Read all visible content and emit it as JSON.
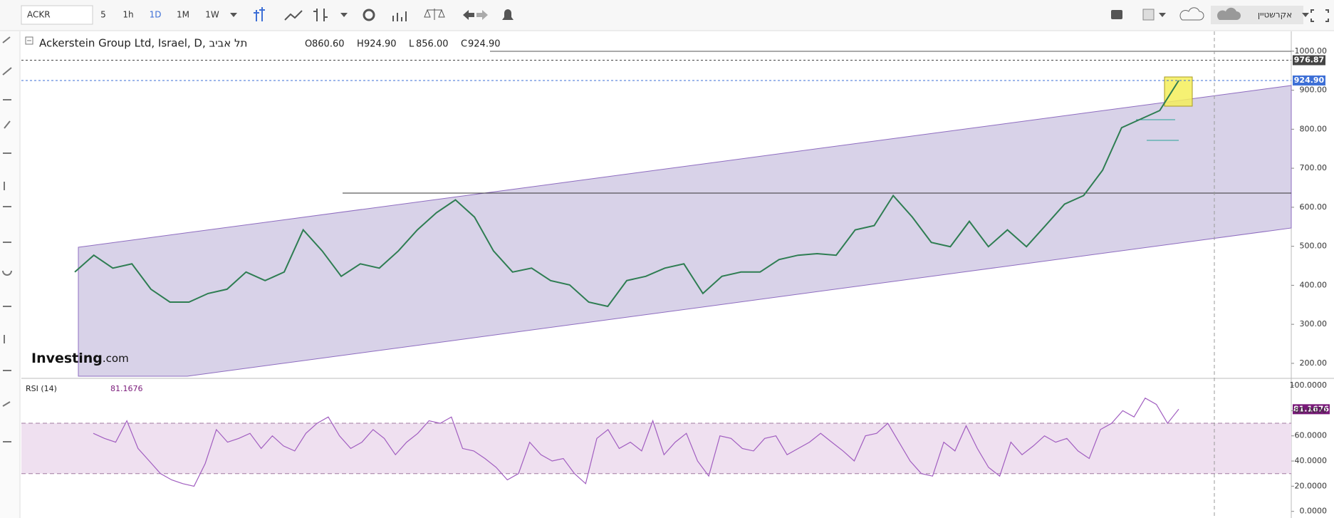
{
  "toolbar": {
    "symbol": "ACKR",
    "intervals": [
      "5",
      "1h",
      "1D",
      "1M",
      "1W"
    ],
    "account": "אקרשטיין"
  },
  "chart_data": [
    {
      "type": "line",
      "title": "Ackerstein Group Ltd, Israel, D, תל אביב",
      "ohlc": [
        {
          "key": "O",
          "value": 860.6,
          "label": "860.60"
        },
        {
          "key": "H",
          "value": 924.9,
          "label": "924.90"
        },
        {
          "key": "L",
          "value": 856,
          "label": "856.00"
        },
        {
          "key": "C",
          "value": 924.9,
          "label": "924.90"
        }
      ],
      "series": [
        {
          "color": "#2e7d52",
          "values": [
            434,
            477,
            444,
            455,
            390,
            357,
            357,
            379,
            390,
            434,
            412,
            434,
            542,
            488,
            423,
            455,
            444,
            488,
            542,
            586,
            619,
            575,
            488,
            434,
            444,
            412,
            401,
            357,
            346,
            412,
            423,
            444,
            455,
            379,
            423,
            434,
            434,
            466,
            477,
            481,
            477,
            542,
            553,
            630,
            575,
            510,
            499,
            564,
            499,
            542,
            499,
            553,
            608,
            630,
            695,
            804,
            826,
            848,
            924.9
          ]
        }
      ],
      "ylim": [
        167,
        1049
      ],
      "yticks": [
        {
          "value": 200,
          "label": "200.00"
        },
        {
          "value": 300,
          "label": "300.00"
        },
        {
          "value": 400,
          "label": "400.00"
        },
        {
          "value": 500,
          "label": "500.00"
        },
        {
          "value": 600,
          "label": "600.00"
        },
        {
          "value": 700,
          "label": "700.00"
        },
        {
          "value": 800,
          "label": "800.00"
        },
        {
          "value": 900,
          "label": "900.00"
        },
        {
          "value": 1000,
          "label": "1000.00"
        }
      ],
      "price_lines": [
        {
          "value": 976.87,
          "label": "976.87",
          "color": "#444444"
        },
        {
          "value": 924.9,
          "label": "924.90",
          "color": "#3d6fd6"
        }
      ],
      "watermark": {
        "brand": "Investing",
        "suffix": ".com"
      }
    },
    {
      "type": "line",
      "title": "RSI (14)",
      "last": 81.1676,
      "series": [
        {
          "color": "#a15ec0",
          "values": [
            62,
            58,
            55,
            72,
            50,
            40,
            30,
            25,
            22,
            20,
            38,
            65,
            55,
            58,
            62,
            50,
            60,
            52,
            48,
            62,
            70,
            75,
            60,
            50,
            55,
            65,
            58,
            45,
            55,
            62,
            72,
            70,
            75,
            50,
            48,
            42,
            35,
            25,
            30,
            55,
            45,
            40,
            42,
            30,
            22,
            58,
            65,
            50,
            55,
            48,
            72,
            45,
            55,
            62,
            40,
            28,
            60,
            58,
            50,
            48,
            58,
            60,
            45,
            50,
            55,
            62,
            55,
            48,
            40,
            60,
            62,
            70,
            55,
            40,
            30,
            28,
            55,
            48,
            68,
            50,
            35,
            28,
            55,
            45,
            52,
            60,
            55,
            58,
            48,
            42,
            65,
            70,
            80,
            75,
            90,
            85,
            70,
            81.1676
          ]
        }
      ],
      "ylim": [
        -3,
        104
      ],
      "yticks": [
        {
          "value": 0,
          "label": "0.0000"
        },
        {
          "value": 20,
          "label": "20.0000"
        },
        {
          "value": 40,
          "label": "40.0000"
        },
        {
          "value": 60,
          "label": "60.0000"
        },
        {
          "value": 80,
          "label": "80.0000"
        },
        {
          "value": 100,
          "label": "100.0000"
        }
      ],
      "band": [
        30,
        70
      ]
    }
  ]
}
